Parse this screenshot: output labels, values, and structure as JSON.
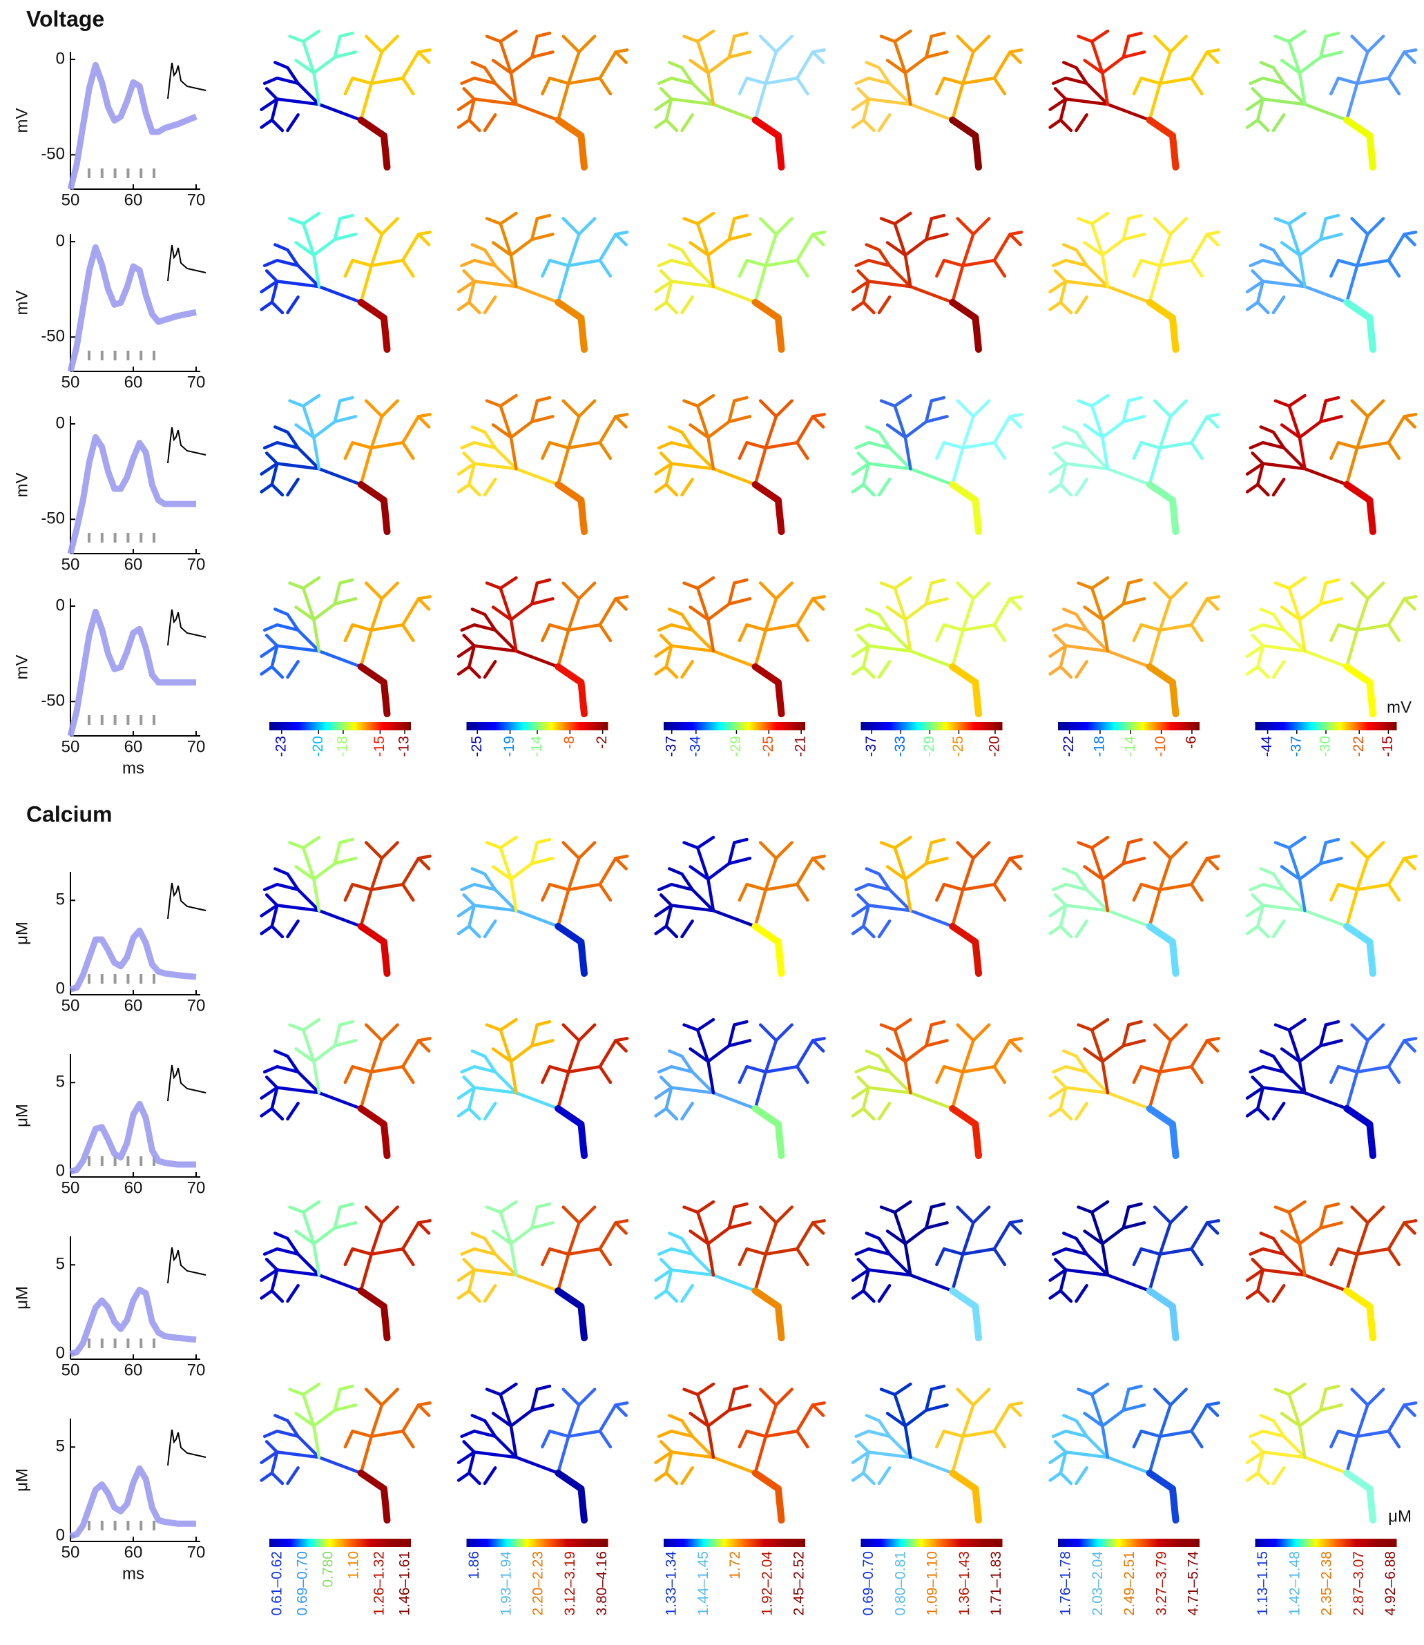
{
  "voltage": {
    "title": "Voltage",
    "y_label": "mV",
    "x_label": "ms",
    "unit": "mV",
    "xlim": [
      50,
      70
    ],
    "ylim": [
      -68,
      4
    ],
    "xticks": [
      50,
      60,
      70
    ],
    "yticks": [
      0,
      -50
    ],
    "trace_color": "#9b9bf0",
    "x": [
      50,
      51,
      52,
      53,
      54,
      55,
      56,
      57,
      58,
      59,
      60,
      61,
      62,
      63,
      64,
      65,
      67,
      70
    ],
    "traces": [
      [
        -68,
        -55,
        -35,
        -15,
        -3,
        -12,
        -25,
        -32,
        -30,
        -22,
        -12,
        -14,
        -28,
        -38,
        -38,
        -36,
        -34,
        -30
      ],
      [
        -68,
        -55,
        -35,
        -15,
        -3,
        -12,
        -25,
        -33,
        -32,
        -24,
        -13,
        -15,
        -28,
        -38,
        -42,
        -41,
        -39,
        -37
      ],
      [
        -68,
        -55,
        -40,
        -20,
        -7,
        -12,
        -25,
        -34,
        -34,
        -28,
        -18,
        -10,
        -15,
        -32,
        -40,
        -42,
        -42,
        -42
      ],
      [
        -68,
        -55,
        -35,
        -15,
        -3,
        -12,
        -25,
        -33,
        -32,
        -24,
        -14,
        -12,
        -22,
        -36,
        -40,
        -40,
        -40,
        -40
      ]
    ],
    "colormap": [
      "#00008f",
      "#0000ff",
      "#00ffff",
      "#ffff00",
      "#ff0000",
      "#800000"
    ],
    "colorbars": [
      {
        "clim": [
          -24,
          -12.5
        ],
        "ticks": [
          -23,
          -20,
          -18,
          -15,
          -13
        ]
      },
      {
        "clim": [
          -27,
          -1
        ],
        "ticks": [
          -25,
          -19,
          -14,
          -8,
          -2
        ]
      },
      {
        "clim": [
          -38,
          -20.5
        ],
        "ticks": [
          -37,
          -34,
          -29,
          -25,
          -21
        ]
      },
      {
        "clim": [
          -38.5,
          -19
        ],
        "ticks": [
          -37,
          -33,
          -29,
          -25,
          -20
        ]
      },
      {
        "clim": [
          -23.5,
          -5
        ],
        "ticks": [
          -22,
          -18,
          -14,
          -10,
          -6
        ]
      },
      {
        "clim": [
          -47,
          -13
        ],
        "ticks": [
          -44,
          -37,
          -30,
          -22,
          -15
        ]
      }
    ],
    "trees": [
      [
        [
          "#0000cc",
          "#66ffcc",
          "#ffcc00",
          "#990000"
        ],
        [
          "#ee6600",
          "#ee6600",
          "#ee8800",
          "#ee7700"
        ],
        [
          "#aaee55",
          "#ffbb22",
          "#99ddff",
          "#ee0000"
        ],
        [
          "#ffcc44",
          "#ee7700",
          "#ffaa00",
          "#880000"
        ],
        [
          "#aa0000",
          "#ee2200",
          "#ffcc00",
          "#ee3300"
        ],
        [
          "#99ee66",
          "#88ff88",
          "#5599ff",
          "#eeff00"
        ]
      ],
      [
        [
          "#1133ee",
          "#55ffdd",
          "#ffcc00",
          "#aa0000"
        ],
        [
          "#ffaa22",
          "#ee8800",
          "#55ccff",
          "#ee8800"
        ],
        [
          "#eeee33",
          "#ffbb00",
          "#aaff66",
          "#ee7700"
        ],
        [
          "#dd3300",
          "#cc2200",
          "#ee3300",
          "#990000"
        ],
        [
          "#ffcc22",
          "#ffee33",
          "#ffee33",
          "#ffcc00"
        ],
        [
          "#55aaff",
          "#55ccff",
          "#3388ff",
          "#66ffdd"
        ]
      ],
      [
        [
          "#0033cc",
          "#55ccff",
          "#ff9900",
          "#990000"
        ],
        [
          "#ffdd22",
          "#ee7700",
          "#ee8800",
          "#ee7700"
        ],
        [
          "#ffbb00",
          "#ee7700",
          "#ee5500",
          "#aa0000"
        ],
        [
          "#77ffaa",
          "#3366ee",
          "#88ffff",
          "#eeff22"
        ],
        [
          "#99ffdd",
          "#77ffff",
          "#77ffee",
          "#88ffaa"
        ],
        [
          "#aa0000",
          "#cc0000",
          "#ee8800",
          "#dd0000"
        ]
      ],
      [
        [
          "#2266ff",
          "#aaee55",
          "#ffaa00",
          "#990000"
        ],
        [
          "#aa0000",
          "#cc1100",
          "#ee7700",
          "#ee1100"
        ],
        [
          "#ffaa00",
          "#ee6600",
          "#ff9900",
          "#aa0000"
        ],
        [
          "#ccff44",
          "#eeee33",
          "#ddff44",
          "#ffcc00"
        ],
        [
          "#ffaa33",
          "#ee8800",
          "#ffbb22",
          "#ee9900"
        ],
        [
          "#eeff44",
          "#ffee22",
          "#ccee44",
          "#ffff00"
        ]
      ]
    ]
  },
  "calcium": {
    "title": "Calcium",
    "y_label": "μM",
    "x_label": "ms",
    "unit": "μM",
    "xlim": [
      50,
      70
    ],
    "ylim": [
      -0.3,
      6.6
    ],
    "xticks": [
      50,
      60,
      70
    ],
    "yticks": [
      5,
      0
    ],
    "trace_color": "#9b9bf0",
    "x": [
      50,
      51,
      52,
      53,
      54,
      55,
      56,
      57,
      58,
      59,
      60,
      61,
      62,
      63,
      64,
      65,
      67,
      70
    ],
    "traces": [
      [
        0,
        0.1,
        0.8,
        1.8,
        2.8,
        2.8,
        2.2,
        1.5,
        1.3,
        1.8,
        2.9,
        3.3,
        2.6,
        1.4,
        1.0,
        0.9,
        0.8,
        0.7
      ],
      [
        0,
        0.1,
        0.6,
        1.5,
        2.4,
        2.5,
        1.8,
        1.0,
        0.8,
        1.6,
        3.2,
        3.8,
        3.0,
        1.2,
        0.6,
        0.5,
        0.4,
        0.4
      ],
      [
        0,
        0.1,
        0.6,
        1.6,
        2.6,
        3.0,
        2.6,
        1.8,
        1.4,
        1.9,
        3.0,
        3.6,
        3.4,
        1.8,
        1.2,
        1.0,
        0.9,
        0.8
      ],
      [
        0,
        0.1,
        0.6,
        1.6,
        2.6,
        2.9,
        2.4,
        1.6,
        1.4,
        1.8,
        3.0,
        3.8,
        3.2,
        1.6,
        0.9,
        0.8,
        0.7,
        0.7
      ]
    ],
    "colormap": [
      "#0000aa",
      "#0000ff",
      "#00ffff",
      "#ffff00",
      "#ff6600",
      "#cc0000",
      "#990000",
      "#880000"
    ],
    "colorbars": [
      {
        "labels": [
          "0.61–0.62",
          "0.69–0.70",
          "0.780",
          "1.10",
          "1.26–1.32",
          "1.46–1.61"
        ],
        "label_colors": [
          "#1133dd",
          "#3399ff",
          "#88dd66",
          "#ee8800",
          "#bb1100",
          "#880000"
        ]
      },
      {
        "labels": [
          "1.86",
          "1.93–1.94",
          "2.20–2.23",
          "3.12–3.19",
          "3.80–4.16"
        ],
        "label_colors": [
          "#1133dd",
          "#55bbee",
          "#ee7700",
          "#bb1100",
          "#880000"
        ]
      },
      {
        "labels": [
          "1.33–1.34",
          "1.44–1.45",
          "1.72",
          "1.92–2.04",
          "2.45–2.52"
        ],
        "label_colors": [
          "#1133dd",
          "#55bbee",
          "#ee7700",
          "#bb1100",
          "#880000"
        ]
      },
      {
        "labels": [
          "0.69–0.70",
          "0.80–0.81",
          "1.09–1.10",
          "1.36–1.43",
          "1.71–1.83"
        ],
        "label_colors": [
          "#1133dd",
          "#55bbee",
          "#ee7700",
          "#bb1100",
          "#880000"
        ]
      },
      {
        "labels": [
          "1.76–1.78",
          "2.03–2.04",
          "2.49–2.51",
          "3.27–3.79",
          "4.71–5.74"
        ],
        "label_colors": [
          "#1133dd",
          "#55bbee",
          "#ee7700",
          "#bb1100",
          "#880000"
        ]
      },
      {
        "labels": [
          "1.13–1.15",
          "1.42–1.48",
          "2.35–2.38",
          "2.87–3.07",
          "4.92–6.88"
        ],
        "label_colors": [
          "#1133dd",
          "#55bbee",
          "#ee7700",
          "#bb1100",
          "#880000"
        ]
      }
    ],
    "trees": [
      [
        [
          "#0000cc",
          "#aaff66",
          "#cc3300",
          "#dd0000"
        ],
        [
          "#55bbff",
          "#ffee22",
          "#ee6600",
          "#0022cc"
        ],
        [
          "#0000bb",
          "#0000cc",
          "#ee7700",
          "#ffff00"
        ],
        [
          "#3366ff",
          "#ffbb00",
          "#ee5500",
          "#dd1100"
        ],
        [
          "#99ffbb",
          "#ee5500",
          "#ee6600",
          "#66ddff"
        ],
        [
          "#99ffbb",
          "#3388ff",
          "#ffcc00",
          "#66ddff"
        ]
      ],
      [
        [
          "#0000cc",
          "#99ffaa",
          "#ee6600",
          "#aa0000"
        ],
        [
          "#55ddff",
          "#ffbb00",
          "#cc2200",
          "#0000cc"
        ],
        [
          "#55aaff",
          "#0000bb",
          "#2244ee",
          "#88ff88"
        ],
        [
          "#ccee44",
          "#ee5500",
          "#ff8800",
          "#ee2200"
        ],
        [
          "#ffdd33",
          "#cc3300",
          "#ee5500",
          "#3388ff"
        ],
        [
          "#0000bb",
          "#0000bb",
          "#3366ff",
          "#0000cc"
        ]
      ],
      [
        [
          "#0000cc",
          "#88ffaa",
          "#cc2200",
          "#990000"
        ],
        [
          "#ffcc22",
          "#99ffaa",
          "#dd4400",
          "#0000aa"
        ],
        [
          "#55ddff",
          "#cc2200",
          "#cc3300",
          "#ee8800"
        ],
        [
          "#0000bb",
          "#000099",
          "#1133cc",
          "#77ddff"
        ],
        [
          "#0000bb",
          "#000099",
          "#1133cc",
          "#66ccff"
        ],
        [
          "#cc2200",
          "#ee6600",
          "#cc3300",
          "#ffee00"
        ]
      ],
      [
        [
          "#2244ee",
          "#aaff66",
          "#ee6600",
          "#990000"
        ],
        [
          "#0000cc",
          "#0000bb",
          "#3366ff",
          "#0000aa"
        ],
        [
          "#ffaa00",
          "#cc2200",
          "#ee4400",
          "#ee5500"
        ],
        [
          "#66ccff",
          "#0033cc",
          "#ffcc22",
          "#ffbb00"
        ],
        [
          "#55ccff",
          "#3388ff",
          "#2266ee",
          "#1144dd"
        ],
        [
          "#ffee33",
          "#ccee44",
          "#3366ff",
          "#88ffdd"
        ]
      ]
    ]
  }
}
